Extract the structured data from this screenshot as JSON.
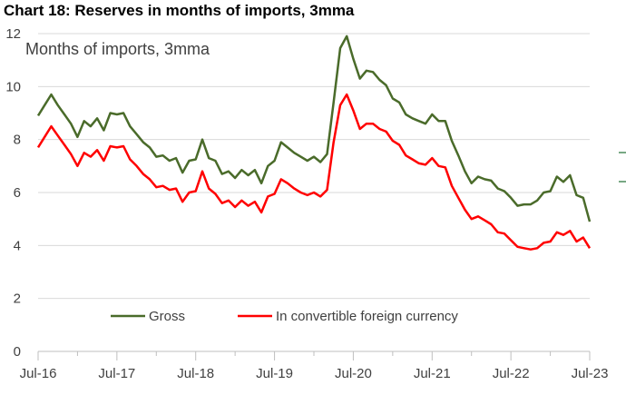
{
  "title": "Chart 18: Reserves in months of imports, 3mma",
  "chart_data": {
    "type": "line",
    "title": "Chart 18: Reserves in months of imports, 3mma",
    "ylabel": "Months of imports, 3mma",
    "ylim": [
      0,
      12
    ],
    "yticks": [
      0,
      2,
      4,
      6,
      8,
      10,
      12
    ],
    "xlim": [
      0,
      84
    ],
    "xticks": [
      {
        "label": "Jul-16",
        "x": 0
      },
      {
        "label": "Jul-17",
        "x": 12
      },
      {
        "label": "Jul-18",
        "x": 24
      },
      {
        "label": "Jul-19",
        "x": 36
      },
      {
        "label": "Jul-20",
        "x": 48
      },
      {
        "label": "Jul-21",
        "x": 60
      },
      {
        "label": "Jul-22",
        "x": 72
      },
      {
        "label": "Jul-23",
        "x": 84
      }
    ],
    "grid": "horizontal",
    "legend": "bottom-center",
    "series": [
      {
        "name": "Gross",
        "color": "#4a6b2a",
        "points": [
          [
            0,
            8.9
          ],
          [
            1,
            9.3
          ],
          [
            2,
            9.7
          ],
          [
            3,
            9.3
          ],
          [
            4,
            8.95
          ],
          [
            5,
            8.6
          ],
          [
            6,
            8.1
          ],
          [
            7,
            8.7
          ],
          [
            8,
            8.5
          ],
          [
            9,
            8.8
          ],
          [
            10,
            8.35
          ],
          [
            11,
            9.0
          ],
          [
            12,
            8.95
          ],
          [
            13,
            9.0
          ],
          [
            14,
            8.5
          ],
          [
            15,
            8.2
          ],
          [
            16,
            7.9
          ],
          [
            17,
            7.7
          ],
          [
            18,
            7.35
          ],
          [
            19,
            7.4
          ],
          [
            20,
            7.2
          ],
          [
            21,
            7.3
          ],
          [
            22,
            6.75
          ],
          [
            23,
            7.2
          ],
          [
            24,
            7.25
          ],
          [
            25,
            8.0
          ],
          [
            26,
            7.3
          ],
          [
            27,
            7.2
          ],
          [
            28,
            6.7
          ],
          [
            29,
            6.8
          ],
          [
            30,
            6.55
          ],
          [
            31,
            6.85
          ],
          [
            32,
            6.65
          ],
          [
            33,
            6.85
          ],
          [
            34,
            6.35
          ],
          [
            35,
            7.0
          ],
          [
            36,
            7.2
          ],
          [
            37,
            7.9
          ],
          [
            38,
            7.7
          ],
          [
            39,
            7.5
          ],
          [
            40,
            7.35
          ],
          [
            41,
            7.2
          ],
          [
            42,
            7.35
          ],
          [
            43,
            7.15
          ],
          [
            44,
            7.45
          ],
          [
            45,
            9.4
          ],
          [
            46,
            11.45
          ],
          [
            47,
            11.9
          ],
          [
            48,
            11.05
          ],
          [
            49,
            10.3
          ],
          [
            50,
            10.6
          ],
          [
            51,
            10.55
          ],
          [
            52,
            10.25
          ],
          [
            53,
            10.05
          ],
          [
            54,
            9.55
          ],
          [
            55,
            9.4
          ],
          [
            56,
            8.95
          ],
          [
            57,
            8.8
          ],
          [
            58,
            8.7
          ],
          [
            59,
            8.6
          ],
          [
            60,
            8.95
          ],
          [
            61,
            8.7
          ],
          [
            62,
            8.7
          ],
          [
            63,
            7.95
          ],
          [
            64,
            7.4
          ],
          [
            65,
            6.8
          ],
          [
            66,
            6.35
          ],
          [
            67,
            6.6
          ],
          [
            68,
            6.5
          ],
          [
            69,
            6.45
          ],
          [
            70,
            6.15
          ],
          [
            71,
            6.05
          ],
          [
            72,
            5.8
          ],
          [
            73,
            5.5
          ],
          [
            74,
            5.55
          ],
          [
            75,
            5.55
          ],
          [
            76,
            5.7
          ],
          [
            77,
            6.0
          ],
          [
            78,
            6.05
          ],
          [
            79,
            6.6
          ],
          [
            80,
            6.4
          ],
          [
            81,
            6.65
          ],
          [
            82,
            5.9
          ],
          [
            83,
            5.8
          ],
          [
            84,
            4.9
          ]
        ]
      },
      {
        "name": "In convertible foreign currency",
        "color": "#ff0000",
        "points": [
          [
            0,
            7.7
          ],
          [
            1,
            8.1
          ],
          [
            2,
            8.5
          ],
          [
            3,
            8.15
          ],
          [
            4,
            7.8
          ],
          [
            5,
            7.45
          ],
          [
            6,
            7.0
          ],
          [
            7,
            7.5
          ],
          [
            8,
            7.35
          ],
          [
            9,
            7.6
          ],
          [
            10,
            7.2
          ],
          [
            11,
            7.75
          ],
          [
            12,
            7.7
          ],
          [
            13,
            7.75
          ],
          [
            14,
            7.25
          ],
          [
            15,
            7.0
          ],
          [
            16,
            6.7
          ],
          [
            17,
            6.5
          ],
          [
            18,
            6.2
          ],
          [
            19,
            6.25
          ],
          [
            20,
            6.1
          ],
          [
            21,
            6.15
          ],
          [
            22,
            5.65
          ],
          [
            23,
            6.0
          ],
          [
            24,
            6.05
          ],
          [
            25,
            6.8
          ],
          [
            26,
            6.15
          ],
          [
            27,
            5.95
          ],
          [
            28,
            5.6
          ],
          [
            29,
            5.7
          ],
          [
            30,
            5.45
          ],
          [
            31,
            5.7
          ],
          [
            32,
            5.5
          ],
          [
            33,
            5.65
          ],
          [
            34,
            5.25
          ],
          [
            35,
            5.85
          ],
          [
            36,
            5.95
          ],
          [
            37,
            6.5
          ],
          [
            38,
            6.35
          ],
          [
            39,
            6.15
          ],
          [
            40,
            6.0
          ],
          [
            41,
            5.9
          ],
          [
            42,
            6.0
          ],
          [
            43,
            5.85
          ],
          [
            44,
            6.1
          ],
          [
            45,
            7.9
          ],
          [
            46,
            9.3
          ],
          [
            47,
            9.7
          ],
          [
            48,
            9.1
          ],
          [
            49,
            8.4
          ],
          [
            50,
            8.6
          ],
          [
            51,
            8.6
          ],
          [
            52,
            8.4
          ],
          [
            53,
            8.3
          ],
          [
            54,
            7.95
          ],
          [
            55,
            7.8
          ],
          [
            56,
            7.4
          ],
          [
            57,
            7.25
          ],
          [
            58,
            7.1
          ],
          [
            59,
            7.05
          ],
          [
            60,
            7.3
          ],
          [
            61,
            7.0
          ],
          [
            62,
            6.95
          ],
          [
            63,
            6.25
          ],
          [
            64,
            5.8
          ],
          [
            65,
            5.35
          ],
          [
            66,
            5.0
          ],
          [
            67,
            5.1
          ],
          [
            68,
            4.95
          ],
          [
            69,
            4.8
          ],
          [
            70,
            4.5
          ],
          [
            71,
            4.45
          ],
          [
            72,
            4.2
          ],
          [
            73,
            3.95
          ],
          [
            74,
            3.9
          ],
          [
            75,
            3.85
          ],
          [
            76,
            3.9
          ],
          [
            77,
            4.1
          ],
          [
            78,
            4.15
          ],
          [
            79,
            4.5
          ],
          [
            80,
            4.4
          ],
          [
            81,
            4.55
          ],
          [
            82,
            4.15
          ],
          [
            83,
            4.3
          ],
          [
            84,
            3.9
          ]
        ]
      }
    ]
  }
}
